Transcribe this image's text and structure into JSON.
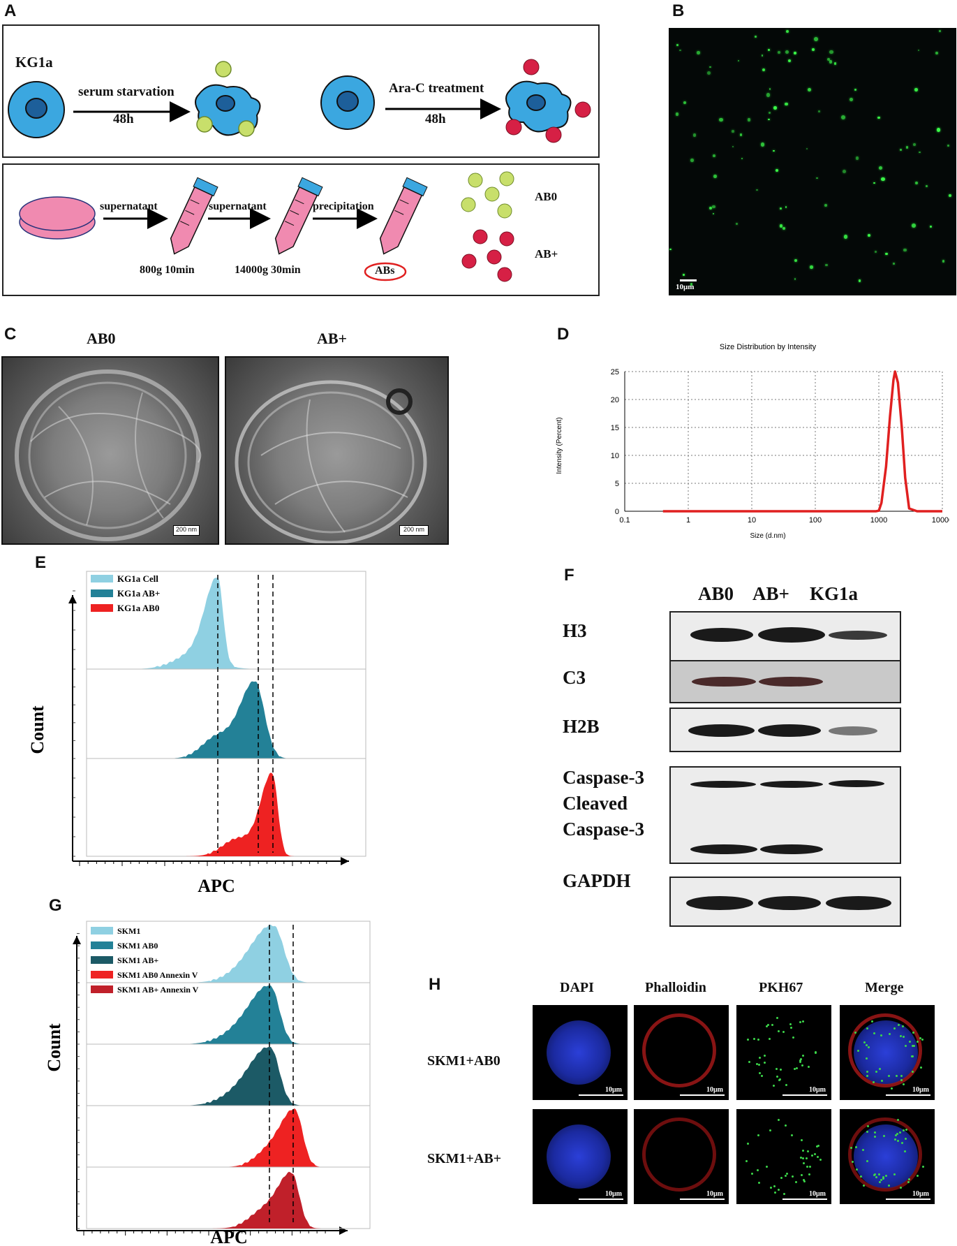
{
  "panels": {
    "a": {
      "label": "A",
      "cell": "KG1a",
      "step1": "serum starvation",
      "time1": "48h",
      "step2": "Ara-C treatment",
      "time2": "48h",
      "sup1": "supernatant",
      "spin1": "800g 10min",
      "sup2": "supernatant",
      "spin2": "14000g 30min",
      "prec": "precipitation",
      "abs": "ABs",
      "ab0": "AB0",
      "abplus": "AB+"
    },
    "b": {
      "label": "B",
      "scale": "10μm"
    },
    "c": {
      "label": "C",
      "left_title": "AB0",
      "right_title": "AB+",
      "scale": "200 nm"
    },
    "d": {
      "label": "D"
    },
    "e": {
      "label": "E",
      "ylabel": "Count",
      "xlabel": "APC",
      "legend": [
        "KG1a Cell",
        "KG1a AB+",
        "KG1a AB0"
      ]
    },
    "f": {
      "label": "F",
      "lanes": [
        "AB0",
        "AB+",
        "KG1a"
      ],
      "rows": [
        "H3",
        "C3",
        "H2B",
        "Caspase-3",
        "Cleaved",
        "Caspase-3",
        "GAPDH"
      ]
    },
    "g": {
      "label": "G",
      "ylabel": "Count",
      "xlabel": "APC",
      "legend": [
        "SKM1",
        "SKM1 AB0",
        "SKM1 AB+",
        "SKM1 AB0 Annexin V",
        "SKM1 AB+ Annexin V"
      ]
    },
    "h": {
      "label": "H",
      "cols": [
        "DAPI",
        "Phalloidin",
        "PKH67",
        "Merge"
      ],
      "rows": [
        "SKM1+AB0",
        "SKM1+AB+"
      ],
      "scale": "10μm"
    }
  },
  "colors": {
    "light_blue": "#8fd0e2",
    "teal": "#238197",
    "dark_teal": "#1c5a66",
    "red": "#ee2222",
    "dark_red": "#c0202a",
    "cell_blue": "#3ba7e0",
    "green_ab": "#c8df6b",
    "red_ab": "#d62045"
  },
  "chart_data": {
    "type": "line",
    "title": "Size Distribution by Intensity",
    "xlabel": "Size (d.nm)",
    "ylabel": "Intensity (Percent)",
    "xscale": "log",
    "xlim": [
      0.1,
      10000
    ],
    "ylim": [
      0,
      25
    ],
    "xticks": [
      "0.1",
      "1",
      "10",
      "100",
      "1000",
      "10000"
    ],
    "yticks": [
      "0",
      "5",
      "10",
      "15",
      "20",
      "25"
    ],
    "grid": true,
    "x": [
      0.4,
      100,
      900,
      1000,
      1100,
      1300,
      1500,
      1700,
      1800,
      2000,
      2300,
      2600,
      3000,
      4000,
      10000
    ],
    "y": [
      0,
      0,
      0,
      0.1,
      1.5,
      8,
      17,
      23.5,
      25,
      23,
      15,
      6,
      0.5,
      0,
      0
    ]
  }
}
